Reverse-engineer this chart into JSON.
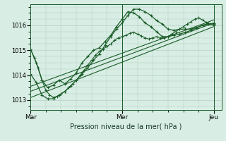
{
  "xlabel": "Pression niveau de la mer( hPa )",
  "background_color": "#d8ede4",
  "grid_color": "#a8ccbb",
  "line_color": "#1a5c28",
  "yticks": [
    1013,
    1014,
    1015,
    1016
  ],
  "xtick_labels": [
    "Mar",
    "Mer",
    "Jeu"
  ],
  "xtick_positions": [
    0,
    48,
    96
  ],
  "xmin": 0,
  "xmax": 100,
  "ymin": 1012.6,
  "ymax": 1016.85,
  "series1_x": [
    0,
    2,
    4,
    6,
    8,
    10,
    12,
    14,
    16,
    18,
    20,
    22,
    24,
    26,
    28,
    30,
    32,
    34,
    36,
    38,
    40,
    42,
    44,
    46,
    48,
    50,
    52,
    54,
    56,
    58,
    60,
    62,
    64,
    66,
    68,
    70,
    72,
    74,
    76,
    78,
    80,
    82,
    84,
    86,
    88,
    90,
    92,
    94,
    96
  ],
  "series1_y": [
    1015.05,
    1014.7,
    1014.3,
    1013.8,
    1013.4,
    1013.2,
    1013.1,
    1013.15,
    1013.25,
    1013.35,
    1013.5,
    1013.65,
    1013.8,
    1014.0,
    1014.2,
    1014.4,
    1014.6,
    1014.8,
    1014.95,
    1015.05,
    1015.15,
    1015.25,
    1015.4,
    1015.5,
    1015.55,
    1015.6,
    1015.68,
    1015.72,
    1015.65,
    1015.58,
    1015.5,
    1015.45,
    1015.5,
    1015.55,
    1015.5,
    1015.48,
    1015.55,
    1015.65,
    1015.75,
    1015.85,
    1015.95,
    1016.05,
    1016.15,
    1016.25,
    1016.3,
    1016.22,
    1016.12,
    1016.05,
    1016.0
  ],
  "series2_x": [
    0,
    3,
    6,
    9,
    12,
    15,
    18,
    21,
    24,
    27,
    30,
    33,
    36,
    39,
    42,
    45,
    48,
    51,
    54,
    57,
    60,
    63,
    66,
    69,
    72,
    75,
    78,
    81,
    84,
    87,
    90,
    93,
    96
  ],
  "series2_y": [
    1015.05,
    1014.5,
    1013.8,
    1013.5,
    1013.6,
    1013.8,
    1013.65,
    1013.85,
    1014.1,
    1014.5,
    1014.75,
    1015.0,
    1015.1,
    1015.35,
    1015.6,
    1015.95,
    1016.25,
    1016.55,
    1016.5,
    1016.35,
    1016.1,
    1015.95,
    1015.75,
    1015.55,
    1015.55,
    1015.6,
    1015.65,
    1015.72,
    1015.8,
    1015.9,
    1016.0,
    1016.08,
    1016.05
  ],
  "series3_x": [
    0,
    3,
    6,
    9,
    12,
    15,
    18,
    21,
    24,
    27,
    30,
    33,
    36,
    39,
    42,
    45,
    48,
    51,
    54,
    57,
    60,
    63,
    66,
    69,
    72,
    75,
    78,
    81,
    84,
    87,
    90,
    93,
    96
  ],
  "series3_y": [
    1014.05,
    1013.7,
    1013.2,
    1013.05,
    1013.05,
    1013.2,
    1013.35,
    1013.55,
    1013.8,
    1014.05,
    1014.3,
    1014.6,
    1014.85,
    1015.2,
    1015.55,
    1015.85,
    1016.1,
    1016.4,
    1016.65,
    1016.65,
    1016.55,
    1016.4,
    1016.2,
    1016.05,
    1015.85,
    1015.8,
    1015.85,
    1015.85,
    1015.85,
    1015.92,
    1016.0,
    1016.05,
    1016.08
  ],
  "series4_x": [
    0,
    96
  ],
  "series4_y": [
    1013.1,
    1015.95
  ],
  "series5_x": [
    0,
    96
  ],
  "series5_y": [
    1013.35,
    1016.1
  ],
  "series6_x": [
    0,
    96
  ],
  "series6_y": [
    1013.55,
    1016.22
  ],
  "vline_x": [
    0,
    48,
    96
  ]
}
